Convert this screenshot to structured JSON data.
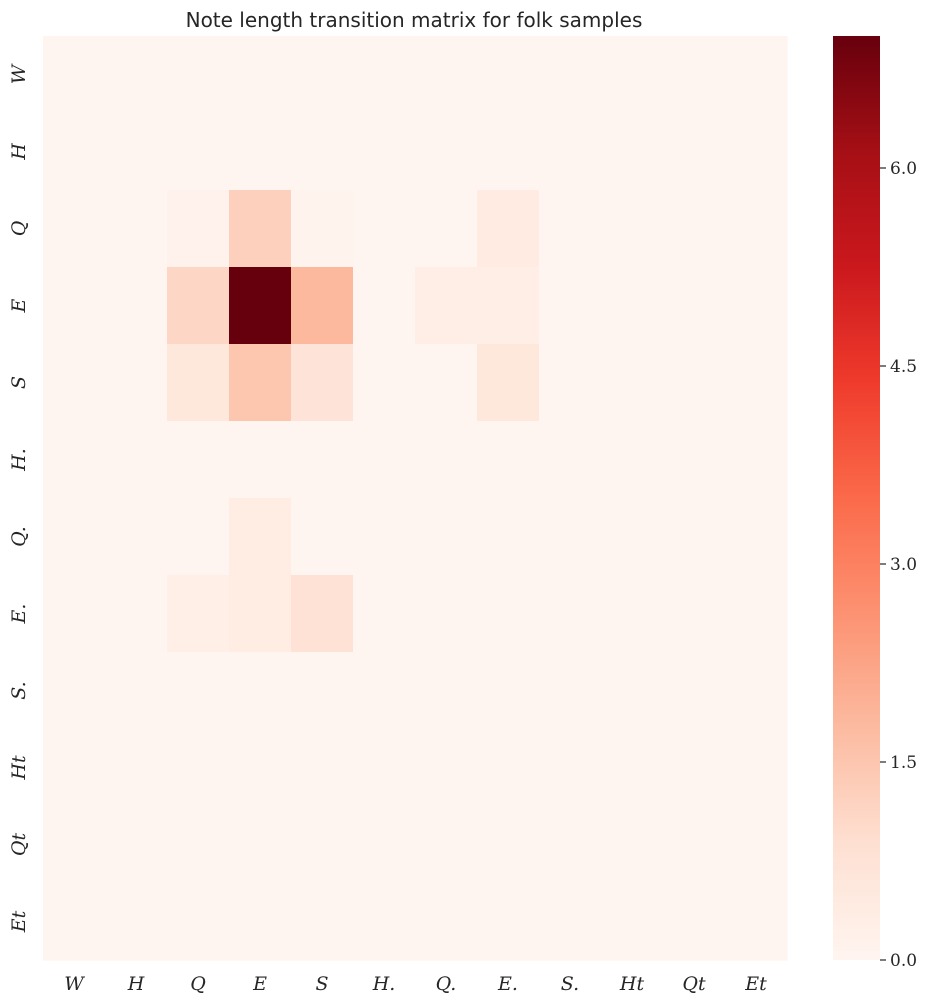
{
  "chart_data": {
    "type": "heatmap",
    "title": "Note length transition matrix for folk samples",
    "xlabel": "",
    "ylabel": "",
    "x_categories": [
      "W",
      "H",
      "Q",
      "E",
      "S",
      "H.",
      "Q.",
      "E.",
      "S.",
      "Ht",
      "Qt",
      "Et"
    ],
    "y_categories": [
      "W",
      "H",
      "Q",
      "E",
      "S",
      "H.",
      "Q.",
      "E.",
      "S.",
      "Ht",
      "Qt",
      "Et"
    ],
    "values": [
      [
        0,
        0,
        0,
        0,
        0,
        0,
        0,
        0,
        0,
        0,
        0,
        0
      ],
      [
        0,
        0,
        0,
        0,
        0,
        0,
        0,
        0,
        0,
        0,
        0,
        0
      ],
      [
        0,
        0,
        0.15,
        1.25,
        0.08,
        0,
        0,
        0.4,
        0,
        0,
        0,
        0
      ],
      [
        0,
        0,
        1.1,
        7.0,
        1.8,
        0,
        0.3,
        0.3,
        0,
        0,
        0,
        0
      ],
      [
        0,
        0,
        0.6,
        1.5,
        0.7,
        0,
        0,
        0.6,
        0,
        0,
        0,
        0
      ],
      [
        0,
        0,
        0,
        0,
        0,
        0,
        0,
        0,
        0,
        0,
        0,
        0
      ],
      [
        0,
        0,
        0,
        0.35,
        0,
        0,
        0,
        0,
        0,
        0,
        0,
        0
      ],
      [
        0,
        0,
        0.25,
        0.35,
        0.8,
        0,
        0,
        0,
        0,
        0,
        0,
        0
      ],
      [
        0,
        0,
        0,
        0,
        0,
        0,
        0,
        0,
        0,
        0,
        0,
        0
      ],
      [
        0,
        0,
        0,
        0,
        0,
        0,
        0,
        0,
        0,
        0,
        0,
        0
      ],
      [
        0,
        0,
        0,
        0,
        0,
        0,
        0,
        0,
        0,
        0,
        0,
        0
      ],
      [
        0,
        0,
        0,
        0,
        0,
        0,
        0,
        0,
        0,
        0,
        0,
        0
      ]
    ],
    "colorbar": {
      "colormap": "Reds",
      "vmin": 0.0,
      "vmax": 7.0,
      "ticks": [
        0.0,
        1.5,
        3.0,
        4.5,
        6.0
      ],
      "tick_labels": [
        "0.0",
        "1.5",
        "3.0",
        "4.5",
        "6.0"
      ]
    },
    "grid": false,
    "legend": "colorbar-right"
  }
}
